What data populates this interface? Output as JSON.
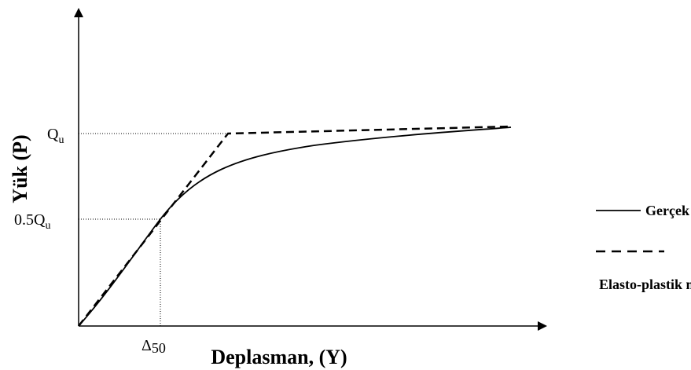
{
  "axes": {
    "y_label": "Yük (P)",
    "x_label": "Deplasman, (Y)"
  },
  "levels": {
    "qu": {
      "main": "Q",
      "sub": "u"
    },
    "half_qu": {
      "main": "0.5Q",
      "sub": "u"
    },
    "delta50": {
      "main": "Δ",
      "sub": "50"
    }
  },
  "legend": {
    "items": [
      "Gerçek Davranış",
      "Elasto-plastik model"
    ]
  }
}
